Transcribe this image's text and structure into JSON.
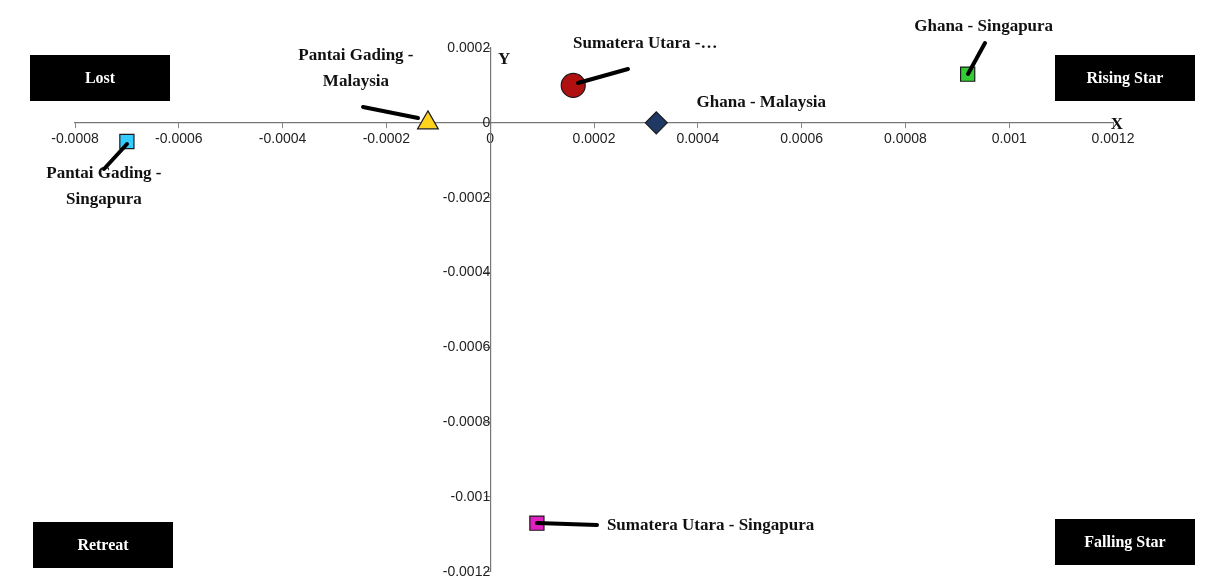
{
  "chart_data": {
    "type": "scatter",
    "xlabel": "X",
    "ylabel": "Y",
    "xlim": [
      -0.0008,
      0.0012
    ],
    "xticks": [
      -0.0008,
      -0.0006,
      -0.0004,
      -0.0002,
      0,
      0.0002,
      0.0004,
      0.0006,
      0.0008,
      0.001,
      0.0012
    ],
    "ylim": [
      -0.0012,
      0.0002
    ],
    "yticks": [
      -0.0012,
      -0.001,
      -0.0008,
      -0.0006,
      -0.0004,
      -0.0002,
      0,
      0.0002
    ],
    "grid": false,
    "legend": false,
    "annotations": [
      "Lost",
      "Rising Star",
      "Retreat",
      "Falling Star"
    ],
    "series": [
      {
        "name": "Sumatera Utara -…",
        "color": "#b01010",
        "marker": "circle",
        "x": [
          0.00016
        ],
        "values": [
          0.0001
        ]
      },
      {
        "name": "Ghana - Malaysia",
        "color": "#1f3864",
        "marker": "diamond",
        "x": [
          0.00032
        ],
        "values": [
          0
        ]
      },
      {
        "name": "Ghana - Singapura",
        "color": "#33cc33",
        "marker": "square",
        "x": [
          0.00092
        ],
        "values": [
          0.00013
        ]
      },
      {
        "name": "Pantai Gading - Malaysia",
        "color": "#ffd21f",
        "marker": "triangle",
        "x": [
          -0.00012
        ],
        "values": [
          0
        ]
      },
      {
        "name": "Pantai Gading - Singapura",
        "color": "#33ccff",
        "marker": "square",
        "x": [
          -0.0007
        ],
        "values": [
          -5e-05
        ]
      },
      {
        "name": "Sumatera Utara - Singapura",
        "color": "#e020c0",
        "marker": "square",
        "x": [
          9e-05
        ],
        "values": [
          -0.00107
        ]
      }
    ]
  }
}
